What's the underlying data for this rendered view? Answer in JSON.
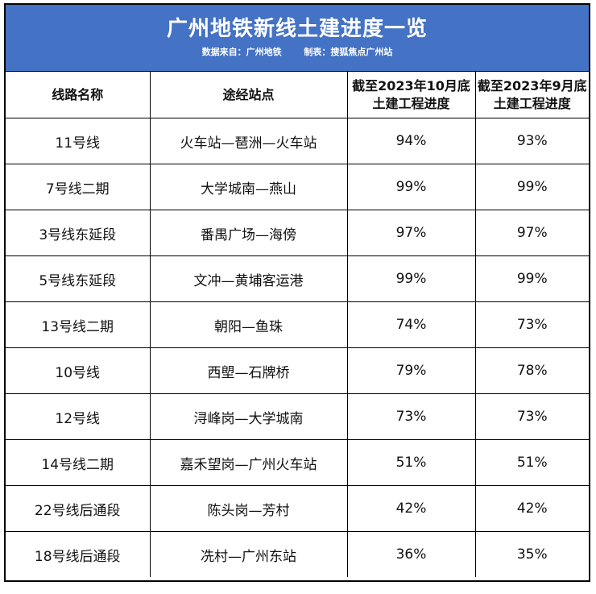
{
  "title": "广州地铁新线土建进度一览",
  "source_label": "数据来自：广州地铁",
  "maker_label": "制表：搜狐焦点广州站",
  "headers": {
    "line": "线路名称",
    "stations": "途经站点",
    "oct_line1": "截至2023年10月底",
    "oct_line2": "土建工程进度",
    "sep_line1": "截至2023年9月底",
    "sep_line2": "土建工程进度"
  },
  "rows": [
    {
      "line": "11号线",
      "stations": "火车站—琶洲—火车站",
      "oct": "94%",
      "sep": "93%"
    },
    {
      "line": "7号线二期",
      "stations": "大学城南—燕山",
      "oct": "99%",
      "sep": "99%"
    },
    {
      "line": "3号线东延段",
      "stations": "番禺广场—海傍",
      "oct": "97%",
      "sep": "97%"
    },
    {
      "line": "5号线东延段",
      "stations": "文冲—黄埔客运港",
      "oct": "99%",
      "sep": "99%"
    },
    {
      "line": "13号线二期",
      "stations": "朝阳—鱼珠",
      "oct": "74%",
      "sep": "73%"
    },
    {
      "line": "10号线",
      "stations": "西塱—石牌桥",
      "oct": "79%",
      "sep": "78%"
    },
    {
      "line": "12号线",
      "stations": "浔峰岗—大学城南",
      "oct": "73%",
      "sep": "73%"
    },
    {
      "line": "14号线二期",
      "stations": "嘉禾望岗—广州火车站",
      "oct": "51%",
      "sep": "51%"
    },
    {
      "line": "22号线后通段",
      "stations": "陈头岗—芳村",
      "oct": "42%",
      "sep": "42%"
    },
    {
      "line": "18号线后通段",
      "stations": "冼村—广州东站",
      "oct": "36%",
      "sep": "35%"
    }
  ]
}
